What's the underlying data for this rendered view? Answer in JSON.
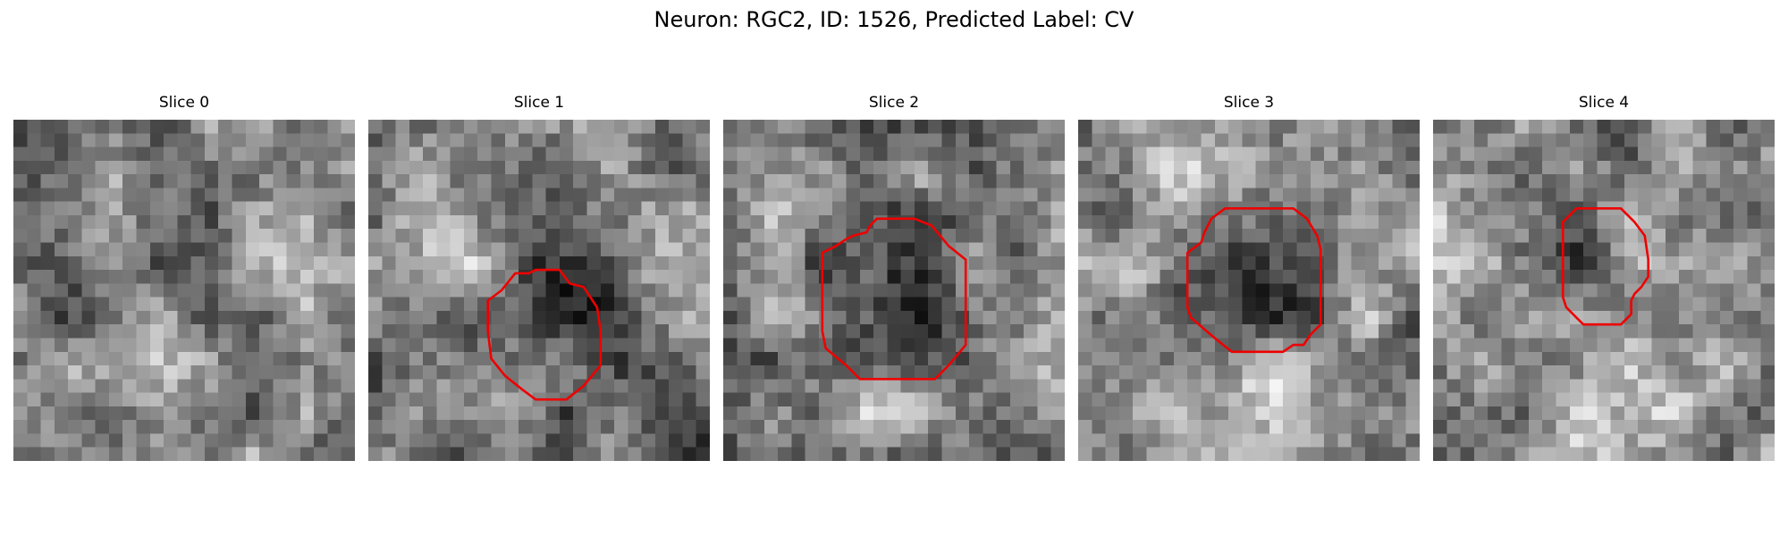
{
  "title": "Neuron: RGC2, ID: 1526, Predicted Label: CV",
  "colors": {
    "contour": "#ee0000",
    "background": "#ffffff"
  },
  "panels": [
    {
      "label": "Slice 0",
      "has_contour": false
    },
    {
      "label": "Slice 1",
      "has_contour": true
    },
    {
      "label": "Slice 2",
      "has_contour": true
    },
    {
      "label": "Slice 3",
      "has_contour": true
    },
    {
      "label": "Slice 4",
      "has_contour": true
    }
  ]
}
